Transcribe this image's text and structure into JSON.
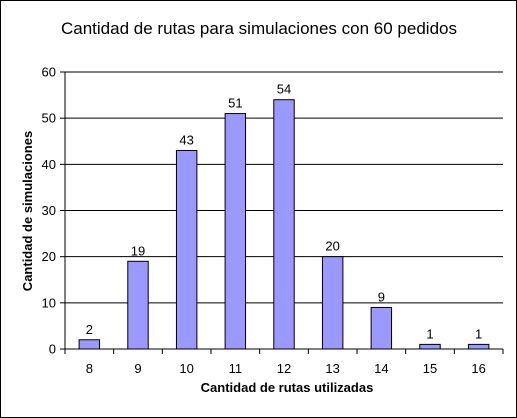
{
  "chart_data": {
    "type": "bar",
    "title": "Cantidad de rutas para simulaciones con 60 pedidos",
    "xlabel": "Cantidad de rutas utilizadas",
    "ylabel": "Cantidad de simulaciones",
    "categories": [
      "8",
      "9",
      "10",
      "11",
      "12",
      "13",
      "14",
      "15",
      "16"
    ],
    "values": [
      2,
      19,
      43,
      51,
      54,
      20,
      9,
      1,
      1
    ],
    "ylim": [
      0,
      60
    ],
    "yticks": [
      "0",
      "10",
      "20",
      "30",
      "40",
      "50",
      "60"
    ],
    "grid": true,
    "legend": "none",
    "colors": {
      "bar_fill": "#9999ff",
      "bar_stroke": "#000000",
      "grid": "#000000",
      "background": "#ffffff"
    }
  }
}
